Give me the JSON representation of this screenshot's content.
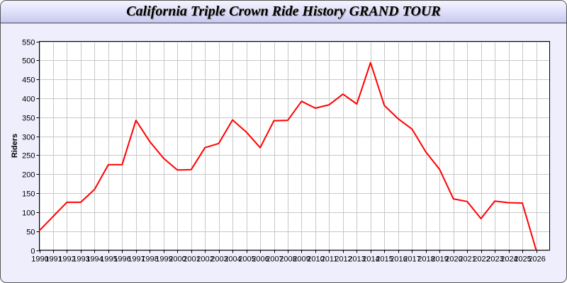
{
  "chart_data": {
    "type": "line",
    "title": "California Triple Crown Ride History GRAND TOUR",
    "xlabel": "",
    "ylabel": "Riders",
    "ylim": [
      0,
      550
    ],
    "ytick_step": 50,
    "grid": true,
    "x": [
      1990,
      1991,
      1992,
      1993,
      1994,
      1995,
      1996,
      1997,
      1998,
      1999,
      2000,
      2001,
      2002,
      2003,
      2004,
      2005,
      2006,
      2007,
      2008,
      2009,
      2010,
      2011,
      2012,
      2013,
      2014,
      2015,
      2016,
      2017,
      2018,
      2019,
      2020,
      2021,
      2022,
      2023,
      2024,
      2025,
      2026
    ],
    "series": [
      {
        "color": "#ff0000",
        "values": [
          51,
          89,
          126,
          126,
          160,
          225,
          225,
          342,
          286,
          242,
          211,
          212,
          270,
          281,
          343,
          311,
          270,
          341,
          342,
          392,
          374,
          383,
          411,
          385,
          494,
          381,
          346,
          319,
          259,
          213,
          135,
          128,
          83,
          129,
          125,
          124,
          0
        ]
      }
    ]
  }
}
